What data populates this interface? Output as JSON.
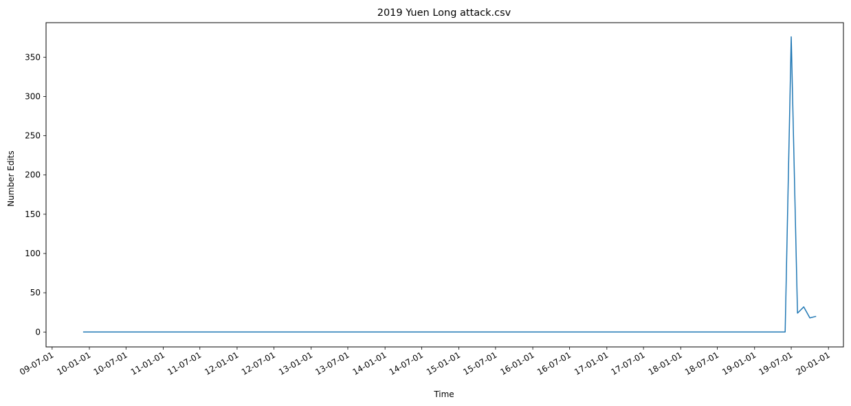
{
  "chart_data": {
    "type": "line",
    "title": "2019 Yuen Long attack.csv",
    "xlabel": "Time",
    "ylabel": "Number Edits",
    "x_ticks": [
      "09-07-01",
      "10-01-01",
      "10-07-01",
      "11-01-01",
      "11-07-01",
      "12-01-01",
      "12-07-01",
      "13-01-01",
      "13-07-01",
      "14-01-01",
      "14-07-01",
      "15-01-01",
      "15-07-01",
      "16-01-01",
      "16-07-01",
      "17-01-01",
      "17-07-01",
      "18-01-01",
      "18-07-01",
      "19-01-01",
      "19-07-01",
      "20-01-01"
    ],
    "y_ticks": [
      0,
      50,
      100,
      150,
      200,
      250,
      300,
      350
    ],
    "xlim": [
      "2009-06-01",
      "2020-03-15"
    ],
    "ylim": [
      -19,
      394
    ],
    "grid": false,
    "series": [
      {
        "color": "#1f77b4",
        "points": [
          {
            "x": "2009-12-01",
            "y": 0
          },
          {
            "x": "2019-06-01",
            "y": 0
          },
          {
            "x": "2019-07-01",
            "y": 376
          },
          {
            "x": "2019-08-01",
            "y": 24
          },
          {
            "x": "2019-09-01",
            "y": 32
          },
          {
            "x": "2019-10-01",
            "y": 18
          },
          {
            "x": "2019-11-01",
            "y": 20
          }
        ]
      }
    ]
  }
}
